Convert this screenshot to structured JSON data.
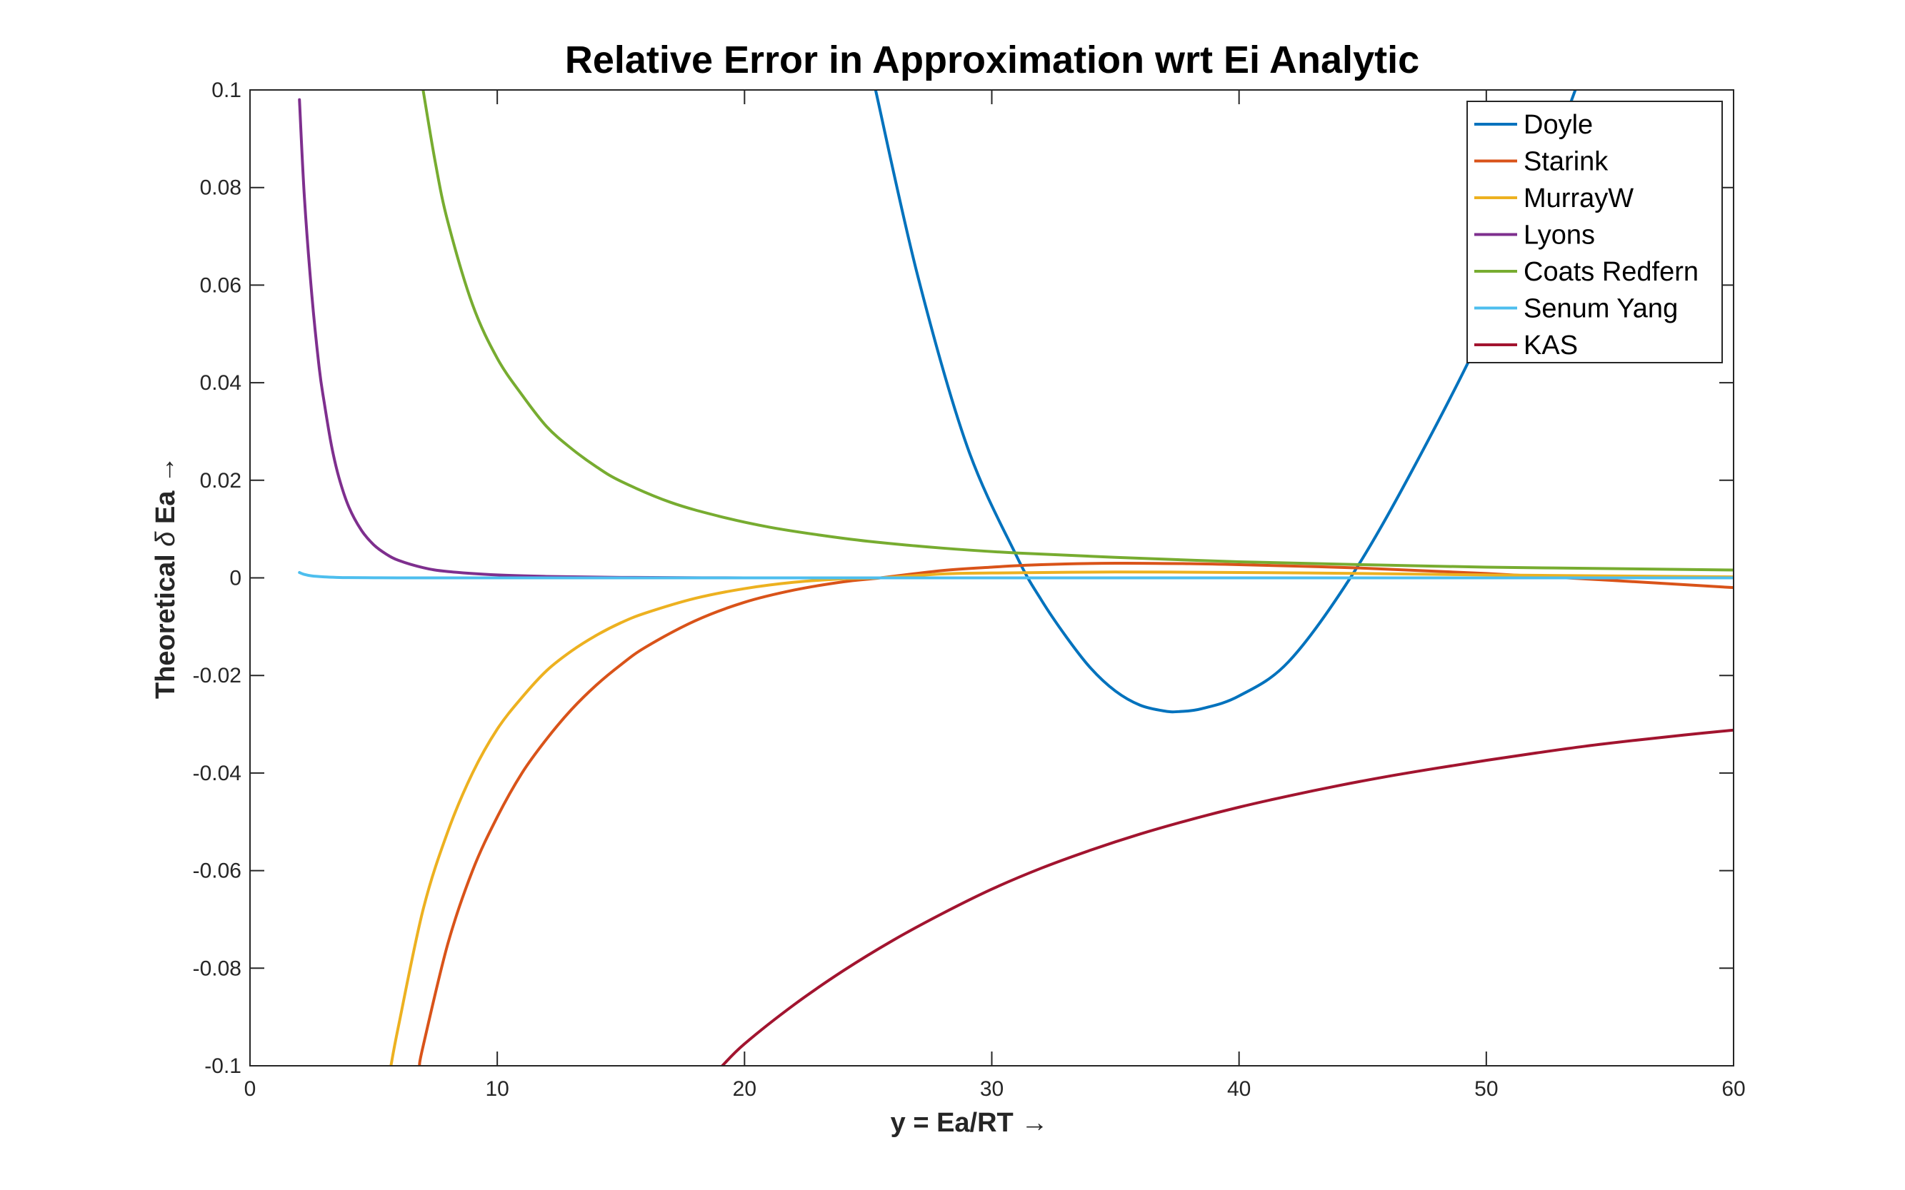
{
  "chart_data": {
    "type": "line",
    "title": "Relative Error in Approximation wrt Ei Analytic",
    "xlabel": "y = Ea/RT →",
    "ylabel_parts": [
      "Theoretical ",
      "δ",
      "  Ea  →"
    ],
    "xlim": [
      0,
      60
    ],
    "ylim": [
      -0.1,
      0.1
    ],
    "x_ticks": [
      0,
      10,
      20,
      30,
      40,
      50,
      60
    ],
    "x_tick_labels": [
      "0",
      "10",
      "20",
      "30",
      "40",
      "50",
      "60"
    ],
    "y_ticks": [
      -0.1,
      -0.08,
      -0.06,
      -0.04,
      -0.02,
      0,
      0.02,
      0.04,
      0.06,
      0.08,
      0.1
    ],
    "y_tick_labels": [
      "-0.1",
      "-0.08",
      "-0.06",
      "-0.04",
      "-0.02",
      "0",
      "0.02",
      "0.04",
      "0.06",
      "0.08",
      "0.1"
    ],
    "grid": false,
    "legend_position": "top-right",
    "series": [
      {
        "name": "Doyle",
        "color": "#0072BD",
        "x": [
          25.3,
          27,
          29,
          31,
          32,
          33,
          34,
          35,
          36,
          37,
          37.6,
          38.5,
          40,
          42,
          44.5,
          47,
          50,
          52,
          53.6
        ],
        "y": [
          0.1,
          0.062,
          0.027,
          0.0045,
          -0.0045,
          -0.012,
          -0.0185,
          -0.0232,
          -0.0261,
          -0.0273,
          -0.0274,
          -0.0268,
          -0.0242,
          -0.0172,
          0.0,
          0.022,
          0.052,
          0.078,
          0.1
        ]
      },
      {
        "name": "Starink",
        "color": "#D95319",
        "x": [
          6.85,
          7,
          8,
          9,
          10,
          11,
          12,
          13,
          14,
          15,
          16,
          18,
          20,
          22,
          24,
          25.5,
          28,
          30,
          32,
          35,
          38,
          40,
          45,
          50,
          55,
          60
        ],
        "y": [
          -0.1,
          -0.096,
          -0.075,
          -0.06,
          -0.049,
          -0.04,
          -0.033,
          -0.027,
          -0.022,
          -0.0178,
          -0.0142,
          -0.0088,
          -0.005,
          -0.0025,
          -0.0008,
          0.0,
          0.0015,
          0.0022,
          0.0027,
          0.003,
          0.0029,
          0.0027,
          0.002,
          0.0009,
          -0.0005,
          -0.002
        ]
      },
      {
        "name": "MurrayW",
        "color": "#EDB120",
        "x": [
          5.7,
          6,
          7,
          8,
          9,
          10,
          11,
          12,
          13,
          14,
          15,
          16,
          18,
          20,
          22,
          24,
          25.5,
          28,
          30,
          35,
          40,
          45,
          50,
          55,
          60
        ],
        "y": [
          -0.1,
          -0.092,
          -0.068,
          -0.052,
          -0.04,
          -0.031,
          -0.0245,
          -0.019,
          -0.015,
          -0.0118,
          -0.0092,
          -0.0072,
          -0.0042,
          -0.0022,
          -0.0009,
          -0.0002,
          0.0,
          0.0008,
          0.001,
          0.0012,
          0.0011,
          0.0009,
          0.0006,
          0.0004,
          0.0002
        ]
      },
      {
        "name": "Lyons",
        "color": "#7E2F8E",
        "x": [
          2.0,
          2.2,
          2.5,
          2.8,
          3.0,
          3.3,
          3.6,
          4.0,
          4.5,
          5,
          5.5,
          6,
          7,
          8,
          10,
          12,
          15,
          20,
          25,
          30,
          40,
          50,
          60
        ],
        "y": [
          0.098,
          0.078,
          0.058,
          0.043,
          0.036,
          0.027,
          0.0205,
          0.0145,
          0.0098,
          0.0068,
          0.0049,
          0.0036,
          0.0021,
          0.0013,
          0.0006,
          0.0003,
          0.0001,
          0.0,
          0.0,
          0.0,
          0.0,
          0.0,
          0.0
        ]
      },
      {
        "name": "Coats Redfern",
        "color": "#77AC30",
        "x": [
          7.0,
          7.5,
          8,
          9,
          10,
          11,
          12,
          13,
          14,
          15,
          17,
          19,
          21,
          23,
          25,
          28,
          31,
          35,
          40,
          45,
          50,
          55,
          60
        ],
        "y": [
          0.1,
          0.085,
          0.073,
          0.056,
          0.045,
          0.0375,
          0.031,
          0.0265,
          0.0228,
          0.0198,
          0.0155,
          0.0126,
          0.0104,
          0.0088,
          0.0075,
          0.0061,
          0.0051,
          0.0042,
          0.0033,
          0.0027,
          0.0022,
          0.0019,
          0.0016
        ]
      },
      {
        "name": "Senum Yang",
        "color": "#4DBEEE",
        "x": [
          2.0,
          2.2,
          2.5,
          3.0,
          3.5,
          4,
          5,
          6,
          8,
          10,
          20,
          30,
          40,
          50,
          60
        ],
        "y": [
          0.0011,
          0.0007,
          0.0004,
          0.0002,
          0.0001,
          5e-05,
          2e-05,
          0.0,
          0.0,
          0.0,
          0.0,
          0.0,
          0.0,
          0.0,
          0.0
        ]
      },
      {
        "name": "KAS",
        "color": "#A2142F",
        "x": [
          19.1,
          20,
          22,
          24,
          26,
          28,
          30,
          32,
          34,
          36,
          38,
          40,
          42,
          44,
          46,
          48,
          50,
          52,
          54,
          56,
          58,
          60
        ],
        "y": [
          -0.1,
          -0.0955,
          -0.0875,
          -0.0805,
          -0.0743,
          -0.0688,
          -0.0638,
          -0.0595,
          -0.0558,
          -0.0525,
          -0.0496,
          -0.047,
          -0.0447,
          -0.0426,
          -0.0407,
          -0.039,
          -0.0374,
          -0.0359,
          -0.0345,
          -0.0333,
          -0.0322,
          -0.0312
        ]
      }
    ]
  }
}
